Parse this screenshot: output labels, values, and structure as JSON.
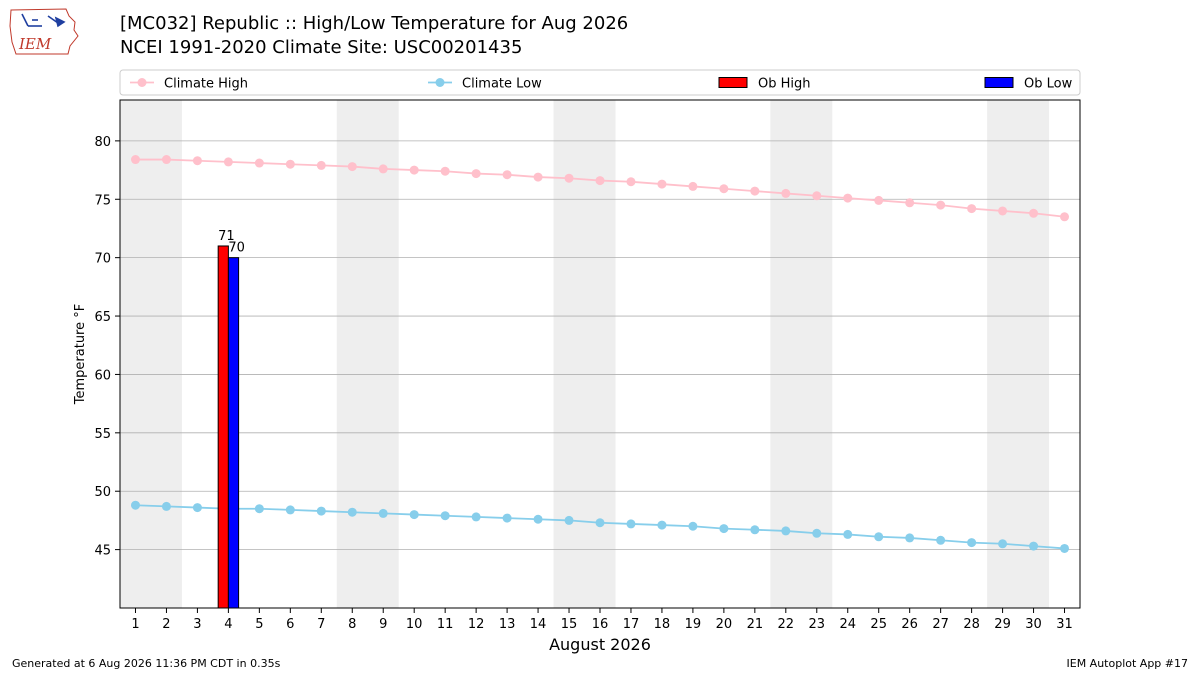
{
  "header": {
    "title_line1": "[MC032] Republic  :: High/Low Temperature for Aug 2026",
    "title_line2": "NCEI 1991-2020 Climate Site: USC00201435"
  },
  "logo": {
    "text": "IEM"
  },
  "footer": {
    "generated": "Generated at 6 Aug 2026 11:36 PM CDT in 0.35s",
    "app": "IEM Autoplot App #17"
  },
  "colors": {
    "climate_high": "#ffc0cb",
    "climate_low": "#87ceeb",
    "ob_high": "#ff0000",
    "ob_low": "#0000ff",
    "weekend_band": "#eeeeee",
    "grid": "#b0b0b0"
  },
  "chart_data": {
    "type": "line",
    "xlabel": "August 2026",
    "ylabel": "Temperature °F",
    "xlim": [
      0.5,
      31.5
    ],
    "ylim": [
      40,
      83.5
    ],
    "x": [
      1,
      2,
      3,
      4,
      5,
      6,
      7,
      8,
      9,
      10,
      11,
      12,
      13,
      14,
      15,
      16,
      17,
      18,
      19,
      20,
      21,
      22,
      23,
      24,
      25,
      26,
      27,
      28,
      29,
      30,
      31
    ],
    "yticks": [
      45,
      50,
      55,
      60,
      65,
      70,
      75,
      80
    ],
    "grid": "horizontal",
    "legend_position": "top",
    "legend": [
      "Climate High",
      "Climate Low",
      "Ob High",
      "Ob Low"
    ],
    "weekend_bands": [
      [
        0.5,
        2.5
      ],
      [
        7.5,
        9.5
      ],
      [
        14.5,
        16.5
      ],
      [
        21.5,
        23.5
      ],
      [
        28.5,
        30.5
      ]
    ],
    "series": [
      {
        "name": "Climate High",
        "kind": "line",
        "values": [
          78.4,
          78.4,
          78.3,
          78.2,
          78.1,
          78.0,
          77.9,
          77.8,
          77.6,
          77.5,
          77.4,
          77.2,
          77.1,
          76.9,
          76.8,
          76.6,
          76.5,
          76.3,
          76.1,
          75.9,
          75.7,
          75.5,
          75.3,
          75.1,
          74.9,
          74.7,
          74.5,
          74.2,
          74.0,
          73.8,
          73.5
        ]
      },
      {
        "name": "Climate Low",
        "kind": "line",
        "values": [
          48.8,
          48.7,
          48.6,
          48.5,
          48.5,
          48.4,
          48.3,
          48.2,
          48.1,
          48.0,
          47.9,
          47.8,
          47.7,
          47.6,
          47.5,
          47.3,
          47.2,
          47.1,
          47.0,
          46.8,
          46.7,
          46.6,
          46.4,
          46.3,
          46.1,
          46.0,
          45.8,
          45.6,
          45.5,
          45.3,
          45.1
        ]
      },
      {
        "name": "Ob High",
        "kind": "bar",
        "x": [
          4
        ],
        "values": [
          71
        ],
        "labels": [
          "71"
        ]
      },
      {
        "name": "Ob Low",
        "kind": "bar",
        "x": [
          4
        ],
        "values": [
          70
        ],
        "labels": [
          "70"
        ]
      }
    ]
  }
}
